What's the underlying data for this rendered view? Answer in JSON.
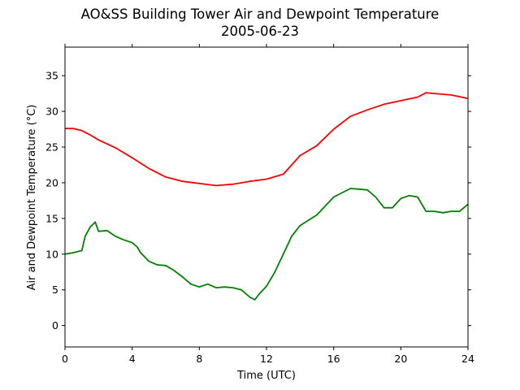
{
  "chart_data": {
    "type": "line",
    "title": "AO&SS Building Tower Air and Dewpoint Temperature",
    "subtitle": "2005-06-23",
    "xlabel": "Time (UTC)",
    "ylabel": "Air and Dewpoint Temperature (°C)",
    "xlim": [
      0,
      24
    ],
    "ylim": [
      -3,
      39
    ],
    "xticks": [
      0,
      4,
      8,
      12,
      16,
      20,
      24
    ],
    "yticks": [
      0,
      5,
      10,
      15,
      20,
      25,
      30,
      35
    ],
    "grid": false,
    "legend": "none",
    "series": [
      {
        "color": "#ff0000",
        "x": [
          0,
          0.5,
          1,
          1.5,
          2,
          3,
          4,
          5,
          6,
          7,
          8,
          9,
          10,
          11,
          12,
          13,
          14,
          15,
          16,
          17,
          18,
          19,
          20,
          21,
          21.5,
          22,
          23,
          24
        ],
        "y": [
          27.6,
          27.6,
          27.3,
          26.7,
          26.0,
          24.9,
          23.5,
          22.0,
          20.8,
          20.2,
          19.9,
          19.6,
          19.8,
          20.2,
          20.5,
          21.2,
          23.8,
          25.2,
          27.5,
          29.3,
          30.2,
          31.0,
          31.5,
          32.0,
          32.6,
          32.5,
          32.3,
          31.8
        ]
      },
      {
        "color": "#008000",
        "x": [
          0,
          0.5,
          1,
          1.2,
          1.5,
          1.8,
          2,
          2.5,
          3,
          3.5,
          4,
          4.3,
          4.5,
          5,
          5.5,
          6,
          6.5,
          7,
          7.5,
          8,
          8.5,
          9,
          9.5,
          10,
          10.5,
          11,
          11.3,
          11.6,
          12,
          12.5,
          13,
          13.5,
          14,
          15,
          16,
          17,
          18,
          18.5,
          19,
          19.5,
          20,
          20.5,
          21,
          21.5,
          22,
          22.5,
          23,
          23.5,
          24
        ],
        "y": [
          10.0,
          10.2,
          10.5,
          12.5,
          13.8,
          14.5,
          13.2,
          13.3,
          12.5,
          12.0,
          11.6,
          11.0,
          10.2,
          9.0,
          8.5,
          8.4,
          7.7,
          6.8,
          5.8,
          5.4,
          5.8,
          5.3,
          5.4,
          5.3,
          5.0,
          4.0,
          3.6,
          4.5,
          5.5,
          7.5,
          10.0,
          12.5,
          14.0,
          15.5,
          18.0,
          19.2,
          19.0,
          18.0,
          16.5,
          16.5,
          17.8,
          18.2,
          18.0,
          16.0,
          16.0,
          15.8,
          16.0,
          16.0,
          17.0
        ]
      }
    ]
  }
}
